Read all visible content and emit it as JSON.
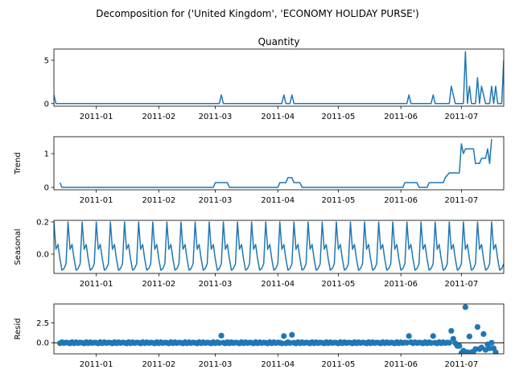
{
  "figure_title": "Decomposition for ('United Kingdom', 'ECONOMY HOLIDAY PURSE')",
  "chart_data": [
    {
      "type": "line",
      "title": "Quantity",
      "ylabel": "",
      "xlim": [
        "2010-12-11",
        "2011-07-22"
      ],
      "ylim": [
        -0.3,
        6.3
      ],
      "yticks": [
        0,
        5
      ],
      "xticks": [
        "2011-01",
        "2011-02",
        "2011-03",
        "2011-04",
        "2011-05",
        "2011-06",
        "2011-07"
      ],
      "points": [
        [
          "2010-12-11",
          1
        ],
        [
          "2010-12-12",
          0
        ],
        [
          "2011-03-03",
          0
        ],
        [
          "2011-03-04",
          1
        ],
        [
          "2011-03-05",
          0
        ],
        [
          "2011-04-03",
          0
        ],
        [
          "2011-04-04",
          1
        ],
        [
          "2011-04-05",
          0
        ],
        [
          "2011-04-07",
          0
        ],
        [
          "2011-04-08",
          1
        ],
        [
          "2011-04-09",
          0
        ],
        [
          "2011-06-04",
          0
        ],
        [
          "2011-06-05",
          1
        ],
        [
          "2011-06-06",
          0
        ],
        [
          "2011-06-16",
          0
        ],
        [
          "2011-06-17",
          1
        ],
        [
          "2011-06-18",
          0
        ],
        [
          "2011-06-25",
          0
        ],
        [
          "2011-06-26",
          2
        ],
        [
          "2011-06-27",
          1
        ],
        [
          "2011-06-28",
          0
        ],
        [
          "2011-07-02",
          0
        ],
        [
          "2011-07-03",
          6
        ],
        [
          "2011-07-04",
          0
        ],
        [
          "2011-07-05",
          2
        ],
        [
          "2011-07-06",
          0
        ],
        [
          "2011-07-08",
          0
        ],
        [
          "2011-07-09",
          3
        ],
        [
          "2011-07-10",
          0
        ],
        [
          "2011-07-11",
          2
        ],
        [
          "2011-07-12",
          1
        ],
        [
          "2011-07-13",
          0
        ],
        [
          "2011-07-15",
          0
        ],
        [
          "2011-07-16",
          2
        ],
        [
          "2011-07-17",
          0
        ],
        [
          "2011-07-18",
          2
        ],
        [
          "2011-07-19",
          0
        ],
        [
          "2011-07-21",
          0
        ],
        [
          "2011-07-22",
          5
        ]
      ]
    },
    {
      "type": "line",
      "title": "",
      "ylabel": "Trend",
      "xlim": [
        "2010-12-11",
        "2011-07-22"
      ],
      "ylim": [
        -0.07,
        1.5
      ],
      "yticks": [
        0,
        1
      ],
      "xticks": [
        "2011-01",
        "2011-02",
        "2011-03",
        "2011-04",
        "2011-05",
        "2011-06",
        "2011-07"
      ],
      "points": [
        [
          "2010-12-14",
          0.14
        ],
        [
          "2010-12-15",
          0
        ],
        [
          "2011-02-28",
          0
        ],
        [
          "2011-03-01",
          0.14
        ],
        [
          "2011-03-07",
          0.14
        ],
        [
          "2011-03-08",
          0
        ],
        [
          "2011-04-01",
          0
        ],
        [
          "2011-04-02",
          0.14
        ],
        [
          "2011-04-05",
          0.14
        ],
        [
          "2011-04-06",
          0.29
        ],
        [
          "2011-04-08",
          0.29
        ],
        [
          "2011-04-09",
          0.14
        ],
        [
          "2011-04-12",
          0.14
        ],
        [
          "2011-04-13",
          0
        ],
        [
          "2011-06-02",
          0
        ],
        [
          "2011-06-03",
          0.14
        ],
        [
          "2011-06-09",
          0.14
        ],
        [
          "2011-06-10",
          0
        ],
        [
          "2011-06-14",
          0
        ],
        [
          "2011-06-15",
          0.14
        ],
        [
          "2011-06-22",
          0.14
        ],
        [
          "2011-06-23",
          0.29
        ],
        [
          "2011-06-25",
          0.43
        ],
        [
          "2011-06-30",
          0.43
        ],
        [
          "2011-07-01",
          1.29
        ],
        [
          "2011-07-02",
          1.0
        ],
        [
          "2011-07-03",
          1.14
        ],
        [
          "2011-07-07",
          1.14
        ],
        [
          "2011-07-08",
          0.71
        ],
        [
          "2011-07-10",
          0.71
        ],
        [
          "2011-07-11",
          0.86
        ],
        [
          "2011-07-13",
          0.86
        ],
        [
          "2011-07-14",
          1.14
        ],
        [
          "2011-07-15",
          0.71
        ],
        [
          "2011-07-16",
          1.43
        ]
      ]
    },
    {
      "type": "line",
      "title": "",
      "ylabel": "Seasonal",
      "xlim": [
        "2010-12-11",
        "2011-07-22"
      ],
      "ylim": [
        -0.12,
        0.21
      ],
      "yticks": [
        0.0,
        0.2
      ],
      "ytick_labels": [
        "0.0",
        "0.2"
      ],
      "xticks": [
        "2011-01",
        "2011-02",
        "2011-03",
        "2011-04",
        "2011-05",
        "2011-06",
        "2011-07"
      ],
      "start": "2010-12-10",
      "end": "2011-07-22",
      "weekly_pattern": [
        -0.06,
        0.2,
        0.03,
        0.06,
        -0.03,
        -0.1,
        -0.09
      ]
    },
    {
      "type": "scatter",
      "title": "",
      "ylabel": "Resid",
      "xlim": [
        "2010-12-11",
        "2011-07-22"
      ],
      "ylim": [
        -1.4,
        4.9
      ],
      "yticks": [
        0.0,
        2.5
      ],
      "ytick_labels": [
        "0.0",
        "2.5"
      ],
      "xticks": [
        "2011-01",
        "2011-02",
        "2011-03",
        "2011-04",
        "2011-05",
        "2011-06",
        "2011-07"
      ],
      "hline": 0,
      "start": "2010-12-14",
      "end": "2011-07-18",
      "baseline_pattern": [
        -0.06,
        0.06,
        -0.03,
        0.03,
        0.0,
        -0.08,
        0.07
      ],
      "overrides": [
        [
          "2011-03-04",
          0.9
        ],
        [
          "2011-04-04",
          0.85
        ],
        [
          "2011-04-08",
          1.0
        ],
        [
          "2011-06-05",
          0.85
        ],
        [
          "2011-06-17",
          0.85
        ],
        [
          "2011-06-26",
          1.5
        ],
        [
          "2011-06-27",
          0.5
        ],
        [
          "2011-06-29",
          -0.4
        ],
        [
          "2011-06-30",
          -0.4
        ],
        [
          "2011-07-01",
          -1.3
        ],
        [
          "2011-07-02",
          -1.0
        ],
        [
          "2011-07-03",
          4.5
        ],
        [
          "2011-07-04",
          -1.2
        ],
        [
          "2011-07-05",
          0.8
        ],
        [
          "2011-07-06",
          -1.2
        ],
        [
          "2011-07-07",
          -1.1
        ],
        [
          "2011-07-08",
          -0.8
        ],
        [
          "2011-07-09",
          2.0
        ],
        [
          "2011-07-10",
          -0.8
        ],
        [
          "2011-07-11",
          -0.6
        ],
        [
          "2011-07-12",
          1.1
        ],
        [
          "2011-07-13",
          -0.9
        ],
        [
          "2011-07-14",
          -0.2
        ],
        [
          "2011-07-15",
          -0.7
        ],
        [
          "2011-07-16",
          0.0
        ],
        [
          "2011-07-17",
          -0.7
        ],
        [
          "2011-07-18",
          -1.2
        ]
      ]
    }
  ],
  "colors": {
    "line": "#1f77b4",
    "axis": "#000000"
  }
}
